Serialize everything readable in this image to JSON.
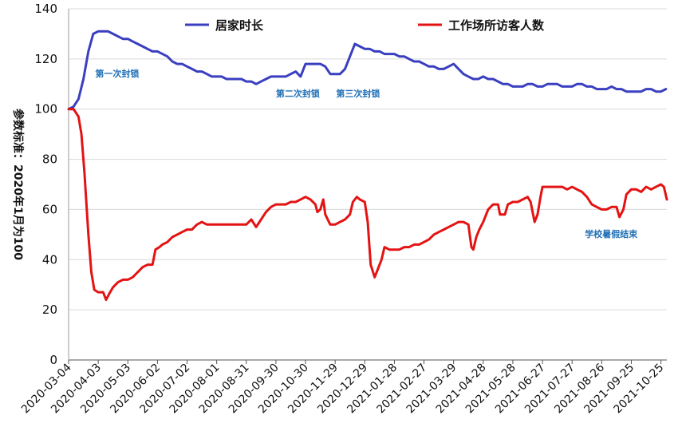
{
  "chart_data": {
    "type": "line",
    "title": "",
    "ylabel": "参数标准：2020年1月为100",
    "xlabel": "",
    "ylim": [
      0,
      140
    ],
    "yticks": [
      0,
      20,
      40,
      60,
      80,
      100,
      120,
      140
    ],
    "grid": true,
    "legend_position": "top",
    "x_tick_labels": [
      "2020-03-04",
      "2020-04-03",
      "2020-05-03",
      "2020-06-02",
      "2020-07-02",
      "2020-08-01",
      "2020-08-31",
      "2020-09-30",
      "2020-10-30",
      "2020-11-29",
      "2020-12-29",
      "2021-01-28",
      "2021-02-27",
      "2021-03-29",
      "2021-04-28",
      "2021-05-28",
      "2021-06-27",
      "2021-07-27",
      "2021-08-26",
      "2021-09-25",
      "2021-10-25"
    ],
    "x_range_days": [
      0,
      606
    ],
    "series": [
      {
        "name": "居家时长",
        "color": "#3a3fc0",
        "points": [
          [
            0,
            100
          ],
          [
            5,
            101
          ],
          [
            10,
            104
          ],
          [
            15,
            112
          ],
          [
            20,
            123
          ],
          [
            25,
            130
          ],
          [
            30,
            131
          ],
          [
            35,
            131
          ],
          [
            40,
            131
          ],
          [
            45,
            130
          ],
          [
            50,
            129
          ],
          [
            55,
            128
          ],
          [
            60,
            128
          ],
          [
            65,
            127
          ],
          [
            70,
            126
          ],
          [
            75,
            125
          ],
          [
            80,
            124
          ],
          [
            85,
            123
          ],
          [
            90,
            123
          ],
          [
            95,
            122
          ],
          [
            100,
            121
          ],
          [
            105,
            119
          ],
          [
            110,
            118
          ],
          [
            115,
            118
          ],
          [
            120,
            117
          ],
          [
            125,
            116
          ],
          [
            130,
            115
          ],
          [
            135,
            115
          ],
          [
            140,
            114
          ],
          [
            145,
            113
          ],
          [
            150,
            113
          ],
          [
            155,
            113
          ],
          [
            160,
            112
          ],
          [
            165,
            112
          ],
          [
            170,
            112
          ],
          [
            175,
            112
          ],
          [
            180,
            111
          ],
          [
            185,
            111
          ],
          [
            190,
            110
          ],
          [
            195,
            111
          ],
          [
            200,
            112
          ],
          [
            205,
            113
          ],
          [
            210,
            113
          ],
          [
            215,
            113
          ],
          [
            220,
            113
          ],
          [
            225,
            114
          ],
          [
            230,
            115
          ],
          [
            235,
            113
          ],
          [
            240,
            118
          ],
          [
            245,
            118
          ],
          [
            250,
            118
          ],
          [
            255,
            118
          ],
          [
            260,
            117
          ],
          [
            265,
            114
          ],
          [
            270,
            114
          ],
          [
            275,
            114
          ],
          [
            280,
            116
          ],
          [
            285,
            121
          ],
          [
            290,
            126
          ],
          [
            295,
            125
          ],
          [
            300,
            124
          ],
          [
            305,
            124
          ],
          [
            310,
            123
          ],
          [
            315,
            123
          ],
          [
            320,
            122
          ],
          [
            325,
            122
          ],
          [
            330,
            122
          ],
          [
            335,
            121
          ],
          [
            340,
            121
          ],
          [
            345,
            120
          ],
          [
            350,
            119
          ],
          [
            355,
            119
          ],
          [
            360,
            118
          ],
          [
            365,
            117
          ],
          [
            370,
            117
          ],
          [
            375,
            116
          ],
          [
            380,
            116
          ],
          [
            385,
            117
          ],
          [
            390,
            118
          ],
          [
            395,
            116
          ],
          [
            400,
            114
          ],
          [
            405,
            113
          ],
          [
            410,
            112
          ],
          [
            415,
            112
          ],
          [
            420,
            113
          ],
          [
            425,
            112
          ],
          [
            430,
            112
          ],
          [
            435,
            111
          ],
          [
            440,
            110
          ],
          [
            445,
            110
          ],
          [
            450,
            109
          ],
          [
            455,
            109
          ],
          [
            460,
            109
          ],
          [
            465,
            110
          ],
          [
            470,
            110
          ],
          [
            475,
            109
          ],
          [
            480,
            109
          ],
          [
            485,
            110
          ],
          [
            490,
            110
          ],
          [
            495,
            110
          ],
          [
            500,
            109
          ],
          [
            505,
            109
          ],
          [
            510,
            109
          ],
          [
            515,
            110
          ],
          [
            520,
            110
          ],
          [
            525,
            109
          ],
          [
            530,
            109
          ],
          [
            535,
            108
          ],
          [
            540,
            108
          ],
          [
            545,
            108
          ],
          [
            550,
            109
          ],
          [
            555,
            108
          ],
          [
            560,
            108
          ],
          [
            565,
            107
          ],
          [
            570,
            107
          ],
          [
            575,
            107
          ],
          [
            580,
            107
          ],
          [
            585,
            108
          ],
          [
            590,
            108
          ],
          [
            595,
            107
          ],
          [
            600,
            107
          ],
          [
            605,
            108
          ]
        ]
      },
      {
        "name": "工作场所访客人数",
        "color": "#e31313",
        "points": [
          [
            0,
            100
          ],
          [
            5,
            100
          ],
          [
            10,
            97
          ],
          [
            13,
            90
          ],
          [
            16,
            75
          ],
          [
            20,
            50
          ],
          [
            23,
            35
          ],
          [
            26,
            28
          ],
          [
            30,
            27
          ],
          [
            35,
            27
          ],
          [
            38,
            24
          ],
          [
            42,
            27
          ],
          [
            45,
            29
          ],
          [
            50,
            31
          ],
          [
            55,
            32
          ],
          [
            60,
            32
          ],
          [
            65,
            33
          ],
          [
            70,
            35
          ],
          [
            75,
            37
          ],
          [
            80,
            38
          ],
          [
            85,
            38
          ],
          [
            88,
            44
          ],
          [
            92,
            45
          ],
          [
            95,
            46
          ],
          [
            100,
            47
          ],
          [
            105,
            49
          ],
          [
            110,
            50
          ],
          [
            115,
            51
          ],
          [
            120,
            52
          ],
          [
            125,
            52
          ],
          [
            130,
            54
          ],
          [
            135,
            55
          ],
          [
            140,
            54
          ],
          [
            145,
            54
          ],
          [
            150,
            54
          ],
          [
            155,
            54
          ],
          [
            160,
            54
          ],
          [
            165,
            54
          ],
          [
            170,
            54
          ],
          [
            175,
            54
          ],
          [
            180,
            54
          ],
          [
            185,
            56
          ],
          [
            190,
            53
          ],
          [
            195,
            56
          ],
          [
            200,
            59
          ],
          [
            205,
            61
          ],
          [
            210,
            62
          ],
          [
            215,
            62
          ],
          [
            220,
            62
          ],
          [
            225,
            63
          ],
          [
            230,
            63
          ],
          [
            235,
            64
          ],
          [
            240,
            65
          ],
          [
            245,
            64
          ],
          [
            250,
            62
          ],
          [
            252,
            59
          ],
          [
            255,
            60
          ],
          [
            258,
            64
          ],
          [
            260,
            58
          ],
          [
            265,
            54
          ],
          [
            270,
            54
          ],
          [
            275,
            55
          ],
          [
            280,
            56
          ],
          [
            285,
            58
          ],
          [
            288,
            63
          ],
          [
            292,
            65
          ],
          [
            295,
            64
          ],
          [
            300,
            63
          ],
          [
            303,
            55
          ],
          [
            306,
            38
          ],
          [
            310,
            33
          ],
          [
            313,
            36
          ],
          [
            317,
            40
          ],
          [
            320,
            45
          ],
          [
            325,
            44
          ],
          [
            330,
            44
          ],
          [
            335,
            44
          ],
          [
            340,
            45
          ],
          [
            345,
            45
          ],
          [
            350,
            46
          ],
          [
            355,
            46
          ],
          [
            360,
            47
          ],
          [
            365,
            48
          ],
          [
            370,
            50
          ],
          [
            375,
            51
          ],
          [
            380,
            52
          ],
          [
            385,
            53
          ],
          [
            390,
            54
          ],
          [
            395,
            55
          ],
          [
            400,
            55
          ],
          [
            405,
            54
          ],
          [
            408,
            45
          ],
          [
            410,
            44
          ],
          [
            413,
            49
          ],
          [
            416,
            52
          ],
          [
            420,
            55
          ],
          [
            425,
            60
          ],
          [
            430,
            62
          ],
          [
            435,
            62
          ],
          [
            437,
            58
          ],
          [
            442,
            58
          ],
          [
            445,
            62
          ],
          [
            450,
            63
          ],
          [
            455,
            63
          ],
          [
            460,
            64
          ],
          [
            465,
            65
          ],
          [
            468,
            63
          ],
          [
            470,
            59
          ],
          [
            472,
            55
          ],
          [
            475,
            58
          ],
          [
            478,
            65
          ],
          [
            480,
            69
          ],
          [
            485,
            69
          ],
          [
            490,
            69
          ],
          [
            495,
            69
          ],
          [
            500,
            69
          ],
          [
            505,
            68
          ],
          [
            510,
            69
          ],
          [
            515,
            68
          ],
          [
            520,
            67
          ],
          [
            525,
            65
          ],
          [
            530,
            62
          ],
          [
            535,
            61
          ],
          [
            540,
            60
          ],
          [
            545,
            60
          ],
          [
            550,
            61
          ],
          [
            555,
            61
          ],
          [
            558,
            57
          ],
          [
            562,
            60
          ],
          [
            565,
            66
          ],
          [
            570,
            68
          ],
          [
            575,
            68
          ],
          [
            580,
            67
          ],
          [
            585,
            69
          ],
          [
            590,
            68
          ],
          [
            595,
            69
          ],
          [
            600,
            70
          ],
          [
            603,
            69
          ],
          [
            606,
            64
          ]
        ]
      }
    ],
    "annotations": [
      {
        "text": "第一次封锁",
        "x": 27,
        "y": 113
      },
      {
        "text": "第二次封锁",
        "x": 210,
        "y": 105
      },
      {
        "text": "第三次封锁",
        "x": 271,
        "y": 105
      },
      {
        "text": "学校暑假结束",
        "x": 523,
        "y": 49
      }
    ]
  }
}
